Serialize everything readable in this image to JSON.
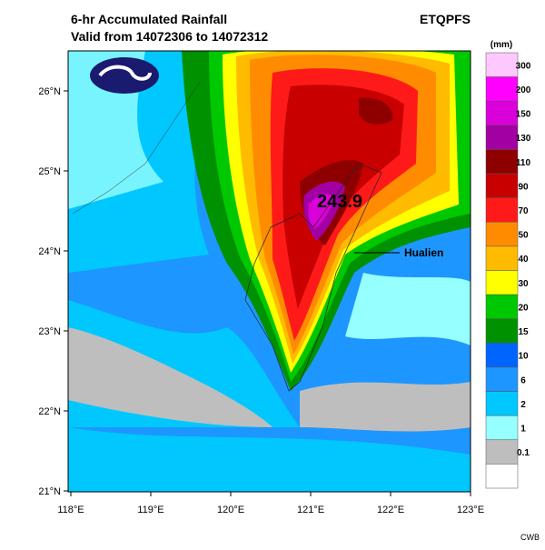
{
  "header": {
    "title": "6-hr Accumulated Rainfall",
    "subtitle": "Valid from 14072306 to 14072312",
    "product": "ETQPFS"
  },
  "map": {
    "lat_labels": [
      "26°N",
      "25°N",
      "24°N",
      "23°N",
      "22°N",
      "21°N"
    ],
    "lon_labels": [
      "118°E",
      "119°E",
      "120°E",
      "121°E",
      "122°E",
      "123°E"
    ],
    "max_label": "243.9",
    "place_label": "Hualien"
  },
  "legend": {
    "unit": "(mm)",
    "levels": [
      "300",
      "200",
      "150",
      "130",
      "110",
      "90",
      "70",
      "50",
      "40",
      "30",
      "20",
      "15",
      "10",
      "6",
      "2",
      "1",
      "0.1"
    ],
    "colors": [
      "#ffc8ff",
      "#ff00ff",
      "#d900d9",
      "#a300a3",
      "#8e0000",
      "#c80000",
      "#ff1a1a",
      "#ff8c00",
      "#ffbb00",
      "#ffff00",
      "#00c800",
      "#009100",
      "#0064ff",
      "#1e96ff",
      "#00c8ff",
      "#96ffff",
      "#bebebe",
      "#ffffff"
    ]
  },
  "footer": {
    "credit": "CWB"
  }
}
